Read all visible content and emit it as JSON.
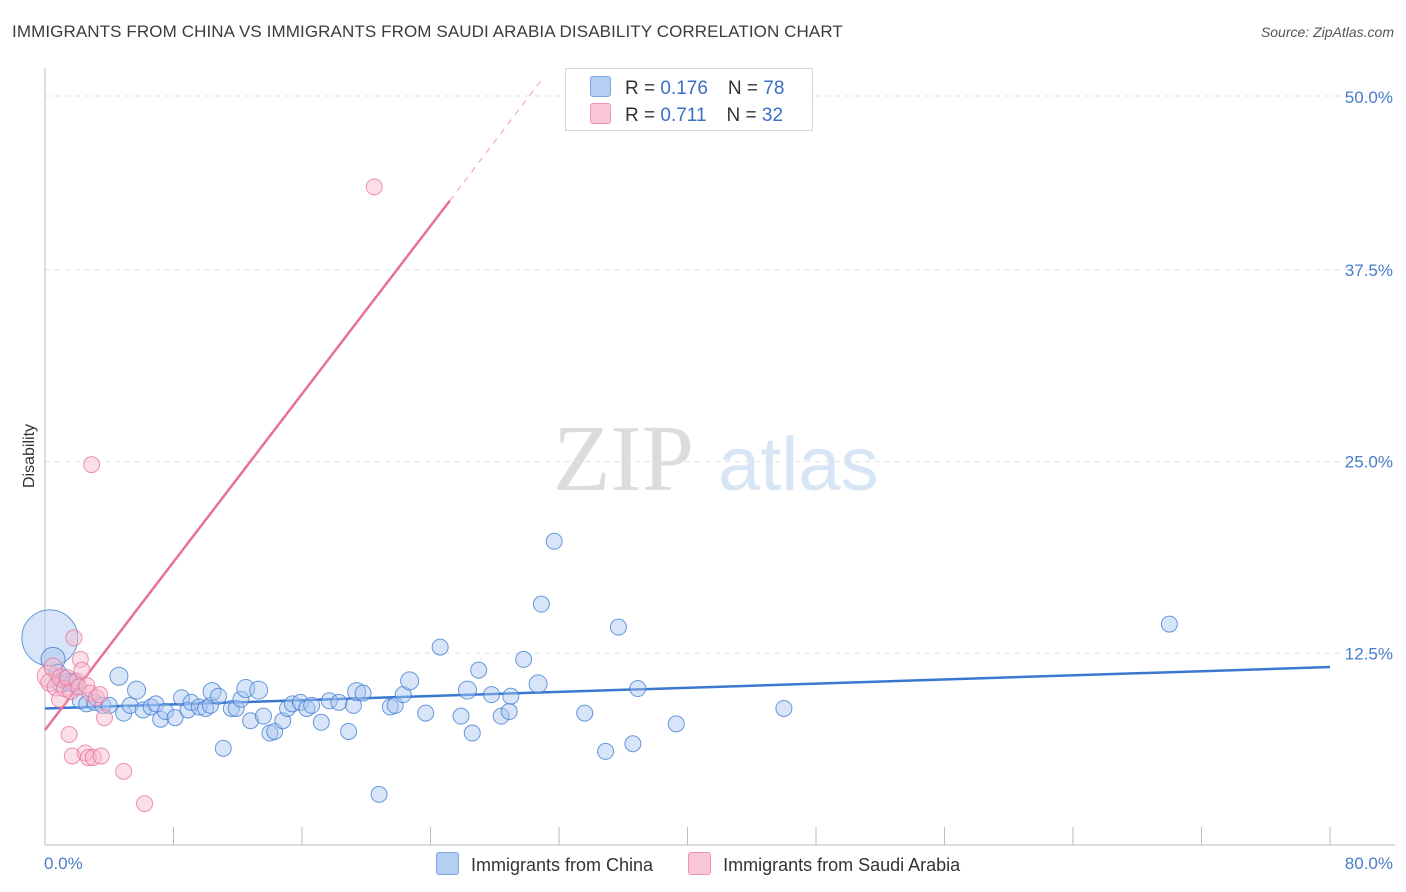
{
  "title": "IMMIGRANTS FROM CHINA VS IMMIGRANTS FROM SAUDI ARABIA DISABILITY CORRELATION CHART",
  "source": "Source: ZipAtlas.com",
  "watermark": {
    "zip": "ZIP",
    "atlas": "atlas"
  },
  "colors": {
    "china": "#3a78d0",
    "china_fill": "#a9c6ef",
    "saudi": "#e8709a",
    "saudi_fill": "#f6b9cc",
    "axis_text": "#4a7cc9"
  },
  "legend": {
    "china": {
      "r_label": "R = ",
      "r_value": "0.176",
      "n_label": "N = ",
      "n_value": "78"
    },
    "saudi": {
      "r_label": "R = ",
      "r_value": "0.711",
      "n_label": "N = ",
      "n_value": "32"
    }
  },
  "bottom_legend": {
    "china": "Immigrants from China",
    "saudi": "Immigrants from Saudi Arabia"
  },
  "chart_data": {
    "type": "scatter",
    "title": "IMMIGRANTS FROM CHINA VS IMMIGRANTS FROM SAUDI ARABIA DISABILITY CORRELATION CHART",
    "xlabel": "",
    "ylabel": "Disability",
    "xlim": [
      0,
      80
    ],
    "ylim": [
      0,
      50
    ],
    "x_tick_labels": [
      "0.0%",
      "80.0%"
    ],
    "y_ticks": [
      12.5,
      25.0,
      37.5,
      50.0
    ],
    "y_tick_labels": [
      "12.5%",
      "25.0%",
      "37.5%",
      "50.0%"
    ],
    "grid": true,
    "series": [
      {
        "name": "Immigrants from China",
        "trend": {
          "x0": 0,
          "y0": 8.9,
          "x1": 80,
          "y1": 11.6
        },
        "points": [
          [
            0.3,
            13.5,
            28
          ],
          [
            0.5,
            12.1,
            12
          ],
          [
            0.8,
            11.2,
            9
          ],
          [
            1.0,
            10.5,
            9
          ],
          [
            1.2,
            10.8,
            9
          ],
          [
            1.5,
            10.6,
            9
          ],
          [
            1.8,
            10.6,
            9
          ],
          [
            2.2,
            9.4,
            8
          ],
          [
            2.6,
            9.2,
            8
          ],
          [
            3.1,
            9.3,
            8
          ],
          [
            3.6,
            9.1,
            8
          ],
          [
            4.0,
            9.1,
            8
          ],
          [
            4.6,
            11.0,
            9
          ],
          [
            4.9,
            8.6,
            8
          ],
          [
            5.3,
            9.1,
            8
          ],
          [
            5.7,
            10.1,
            9
          ],
          [
            6.1,
            8.8,
            8
          ],
          [
            6.6,
            9.0,
            8
          ],
          [
            6.9,
            9.2,
            8
          ],
          [
            7.2,
            8.2,
            8
          ],
          [
            7.5,
            8.7,
            8
          ],
          [
            8.1,
            8.3,
            8
          ],
          [
            8.5,
            9.6,
            8
          ],
          [
            8.9,
            8.8,
            8
          ],
          [
            9.1,
            9.3,
            8
          ],
          [
            9.6,
            9.0,
            8
          ],
          [
            10.0,
            8.9,
            8
          ],
          [
            10.3,
            9.1,
            8
          ],
          [
            10.4,
            10.0,
            9
          ],
          [
            10.8,
            9.7,
            8
          ],
          [
            11.1,
            6.3,
            8
          ],
          [
            11.6,
            8.9,
            8
          ],
          [
            11.9,
            8.9,
            8
          ],
          [
            12.2,
            9.5,
            8
          ],
          [
            12.5,
            10.2,
            9
          ],
          [
            12.8,
            8.1,
            8
          ],
          [
            13.3,
            10.1,
            9
          ],
          [
            13.6,
            8.4,
            8
          ],
          [
            14.0,
            7.3,
            8
          ],
          [
            14.3,
            7.4,
            8
          ],
          [
            14.8,
            8.1,
            8
          ],
          [
            15.1,
            8.9,
            8
          ],
          [
            15.4,
            9.2,
            8
          ],
          [
            15.9,
            9.3,
            8
          ],
          [
            16.3,
            8.9,
            8
          ],
          [
            16.6,
            9.1,
            8
          ],
          [
            17.2,
            8.0,
            8
          ],
          [
            17.7,
            9.4,
            8
          ],
          [
            18.3,
            9.3,
            8
          ],
          [
            18.9,
            7.4,
            8
          ],
          [
            19.2,
            9.1,
            8
          ],
          [
            19.4,
            10.0,
            9
          ],
          [
            19.8,
            9.9,
            8
          ],
          [
            20.8,
            3.3,
            8
          ],
          [
            21.5,
            9.0,
            8
          ],
          [
            21.8,
            9.1,
            8
          ],
          [
            22.3,
            9.8,
            8
          ],
          [
            22.7,
            10.7,
            9
          ],
          [
            23.7,
            8.6,
            8
          ],
          [
            24.6,
            12.9,
            8
          ],
          [
            25.9,
            8.4,
            8
          ],
          [
            26.3,
            10.1,
            9
          ],
          [
            26.6,
            7.3,
            8
          ],
          [
            27.0,
            11.4,
            8
          ],
          [
            27.8,
            9.8,
            8
          ],
          [
            28.4,
            8.4,
            8
          ],
          [
            28.9,
            8.7,
            8
          ],
          [
            29.0,
            9.7,
            8
          ],
          [
            29.8,
            12.1,
            8
          ],
          [
            30.7,
            10.5,
            9
          ],
          [
            30.9,
            15.7,
            8
          ],
          [
            31.7,
            19.8,
            8
          ],
          [
            33.6,
            8.6,
            8
          ],
          [
            34.9,
            6.1,
            8
          ],
          [
            35.7,
            14.2,
            8
          ],
          [
            36.6,
            6.6,
            8
          ],
          [
            36.9,
            10.2,
            8
          ],
          [
            39.3,
            7.9,
            8
          ],
          [
            46.0,
            8.9,
            8
          ],
          [
            70.0,
            14.4,
            8
          ]
        ]
      },
      {
        "name": "Immigrants from Saudi Arabia",
        "trend": {
          "x0": 0,
          "y0": 7.5,
          "x1": 25.2,
          "y1": 42.0,
          "x_ext": 31.0,
          "y_ext": 50.0
        },
        "points": [
          [
            0.2,
            11.0,
            11
          ],
          [
            0.3,
            10.6,
            9
          ],
          [
            0.5,
            11.6,
            9
          ],
          [
            0.7,
            10.3,
            9
          ],
          [
            0.9,
            9.5,
            8
          ],
          [
            1.0,
            10.9,
            9
          ],
          [
            1.2,
            10.2,
            8
          ],
          [
            1.4,
            10.9,
            8
          ],
          [
            1.5,
            7.2,
            8
          ],
          [
            1.6,
            10.0,
            8
          ],
          [
            1.7,
            5.8,
            8
          ],
          [
            1.8,
            13.5,
            8
          ],
          [
            2.0,
            10.7,
            8
          ],
          [
            2.1,
            10.3,
            8
          ],
          [
            2.2,
            12.1,
            8
          ],
          [
            2.3,
            11.4,
            8
          ],
          [
            2.5,
            6.0,
            8
          ],
          [
            2.6,
            10.4,
            8
          ],
          [
            2.7,
            5.7,
            8
          ],
          [
            2.8,
            9.9,
            8
          ],
          [
            2.9,
            24.8,
            8
          ],
          [
            3.0,
            5.7,
            8
          ],
          [
            3.2,
            9.6,
            8
          ],
          [
            3.4,
            9.8,
            8
          ],
          [
            3.5,
            5.8,
            8
          ],
          [
            3.7,
            8.3,
            8
          ],
          [
            4.9,
            4.8,
            8
          ],
          [
            6.2,
            2.7,
            8
          ],
          [
            20.5,
            42.9,
            8
          ]
        ]
      }
    ]
  }
}
